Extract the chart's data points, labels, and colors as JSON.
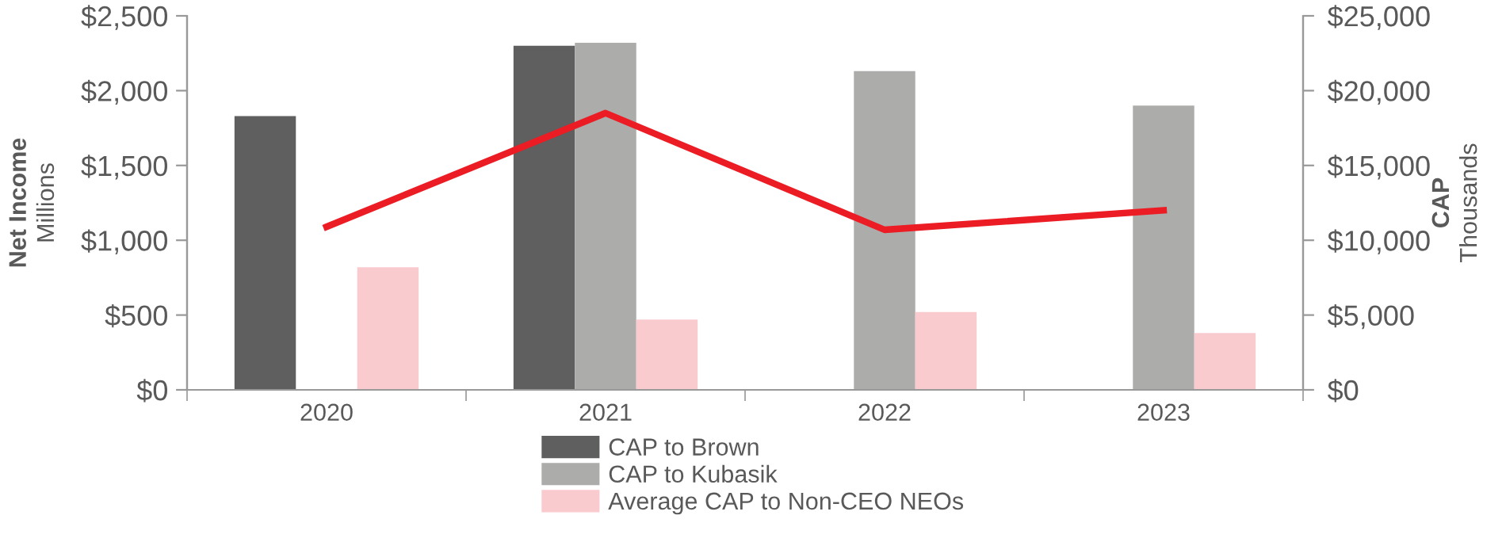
{
  "chart_data": {
    "type": "bar",
    "categories": [
      "2020",
      "2021",
      "2022",
      "2023"
    ],
    "ylabel": "Net Income\nMillions",
    "y2label": "CAP\nThousands",
    "ylim": [
      0,
      2500
    ],
    "yticks": [
      {
        "value": 0,
        "label": "$0"
      },
      {
        "value": 500,
        "label": "$500"
      },
      {
        "value": 1000,
        "label": "$1,000"
      },
      {
        "value": 1500,
        "label": "$1,500"
      },
      {
        "value": 2000,
        "label": "$2,000"
      },
      {
        "value": 2500,
        "label": "$2,500"
      }
    ],
    "y2lim": [
      0,
      25000
    ],
    "y2ticks": [
      {
        "value": 0,
        "label": "$0"
      },
      {
        "value": 5000,
        "label": "$5,000"
      },
      {
        "value": 10000,
        "label": "$10,000"
      },
      {
        "value": 15000,
        "label": "$15,000"
      },
      {
        "value": 20000,
        "label": "$20,000"
      },
      {
        "value": 25000,
        "label": "$25,000"
      }
    ],
    "series": [
      {
        "name": "CAP to Brown",
        "axis": "y2",
        "color": "#5e5f5e",
        "values": [
          18300,
          23000,
          null,
          null
        ]
      },
      {
        "name": "CAP to Kubasik",
        "axis": "y2",
        "color": "#acacab",
        "values": [
          null,
          23200,
          21300,
          19000
        ]
      },
      {
        "name": "Average CAP to Non-CEO NEOs",
        "axis": "y2",
        "color": "#f9cbcf",
        "values": [
          8200,
          4700,
          5200,
          3800
        ]
      },
      {
        "type": "line",
        "axis": "y",
        "color": "#ec1c24",
        "values": [
          1090,
          1850,
          1070,
          1200
        ]
      }
    ],
    "grid": false,
    "legend": "bottom"
  }
}
